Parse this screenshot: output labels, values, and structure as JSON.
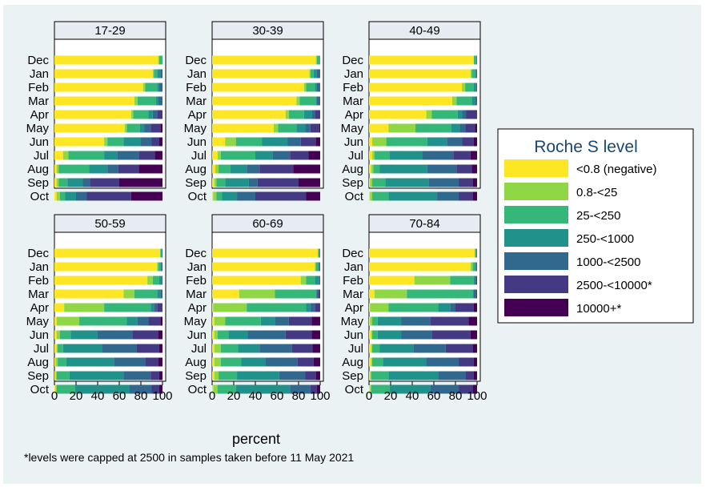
{
  "chart_data": {
    "type": "bar",
    "orientation": "horizontal",
    "stacked": true,
    "xlabel": "percent",
    "xlim": [
      0,
      100
    ],
    "xticks": [
      0,
      20,
      40,
      60,
      80,
      100
    ],
    "months": [
      "Dec",
      "Jan",
      "Feb",
      "Mar",
      "Apr",
      "May",
      "Jun",
      "Jul",
      "Aug",
      "Sep",
      "Oct"
    ],
    "footnote": "*levels were capped at 2500 in samples taken before 11 May 2021",
    "legend": {
      "title": "Roche S level",
      "position": "right",
      "items": [
        {
          "label": "<0.8 (negative)",
          "color": "#fde725"
        },
        {
          "label": "0.8-<25",
          "color": "#8fd744"
        },
        {
          "label": "25-<250",
          "color": "#35b779"
        },
        {
          "label": "250-<1000",
          "color": "#21918c"
        },
        {
          "label": "1000-<2500",
          "color": "#31688e"
        },
        {
          "label": "2500-<10000*",
          "color": "#443983"
        },
        {
          "label": "10000+*",
          "color": "#440154"
        }
      ]
    },
    "panels": [
      {
        "title": "17-29",
        "values": [
          [
            96,
            1,
            3,
            0,
            0,
            0,
            0
          ],
          [
            91,
            1,
            3,
            3,
            2,
            0,
            0
          ],
          [
            82,
            2,
            11,
            2,
            3,
            0,
            0
          ],
          [
            74,
            3,
            17,
            2,
            4,
            0,
            0
          ],
          [
            71,
            2,
            14,
            4,
            4,
            5,
            0
          ],
          [
            65,
            2,
            12,
            4,
            6,
            9,
            2
          ],
          [
            46,
            3,
            15,
            16,
            10,
            7,
            3
          ],
          [
            8,
            5,
            33,
            12,
            20,
            15,
            7
          ],
          [
            2,
            2,
            28,
            17,
            10,
            19,
            22
          ],
          [
            2,
            2,
            8,
            14,
            7,
            27,
            40
          ],
          [
            2,
            3,
            5,
            10,
            10,
            41,
            29
          ]
        ]
      },
      {
        "title": "30-39",
        "values": [
          [
            96,
            1,
            3,
            0,
            0,
            0,
            0
          ],
          [
            90,
            1,
            3,
            3,
            3,
            0,
            0
          ],
          [
            85,
            2,
            8,
            2,
            3,
            0,
            0
          ],
          [
            78,
            3,
            15,
            1,
            3,
            0,
            0
          ],
          [
            68,
            3,
            14,
            7,
            3,
            5,
            0
          ],
          [
            57,
            4,
            17,
            8,
            5,
            8,
            1
          ],
          [
            12,
            10,
            24,
            24,
            12,
            14,
            4
          ],
          [
            5,
            3,
            32,
            16,
            16,
            17,
            11
          ],
          [
            3,
            3,
            11,
            15,
            12,
            31,
            25
          ],
          [
            2,
            2,
            8,
            22,
            8,
            38,
            20
          ],
          [
            1,
            3,
            5,
            14,
            17,
            47,
            13
          ]
        ]
      },
      {
        "title": "40-49",
        "values": [
          [
            97,
            0,
            2,
            1,
            0,
            0,
            0
          ],
          [
            94,
            1,
            3,
            1,
            1,
            0,
            0
          ],
          [
            86,
            3,
            8,
            2,
            1,
            0,
            0
          ],
          [
            77,
            4,
            14,
            3,
            2,
            0,
            0
          ],
          [
            53,
            5,
            24,
            4,
            4,
            10,
            0
          ],
          [
            18,
            25,
            33,
            8,
            5,
            9,
            2
          ],
          [
            3,
            13,
            38,
            18,
            14,
            11,
            3
          ],
          [
            3,
            2,
            14,
            30,
            29,
            16,
            6
          ],
          [
            2,
            2,
            6,
            44,
            27,
            14,
            5
          ],
          [
            1,
            2,
            12,
            40,
            28,
            13,
            4
          ],
          [
            1,
            2,
            15,
            45,
            20,
            13,
            4
          ]
        ]
      },
      {
        "title": "50-59",
        "values": [
          [
            98,
            0,
            1,
            1,
            0,
            0,
            0
          ],
          [
            95,
            1,
            2,
            1,
            1,
            0,
            0
          ],
          [
            86,
            5,
            6,
            2,
            1,
            0,
            0
          ],
          [
            64,
            10,
            21,
            3,
            2,
            0,
            0
          ],
          [
            9,
            37,
            43,
            3,
            3,
            5,
            0
          ],
          [
            2,
            21,
            44,
            10,
            10,
            11,
            2
          ],
          [
            2,
            3,
            10,
            25,
            32,
            24,
            4
          ],
          [
            2,
            1,
            5,
            36,
            32,
            21,
            3
          ],
          [
            1,
            2,
            8,
            44,
            29,
            12,
            4
          ],
          [
            1,
            1,
            12,
            50,
            25,
            8,
            3
          ],
          [
            1,
            1,
            17,
            50,
            21,
            7,
            3
          ]
        ]
      },
      {
        "title": "60-69",
        "values": [
          [
            98,
            0,
            1,
            1,
            0,
            0,
            0
          ],
          [
            95,
            1,
            2,
            1,
            1,
            0,
            0
          ],
          [
            82,
            5,
            8,
            4,
            1,
            0,
            0
          ],
          [
            25,
            33,
            38,
            1,
            1,
            2,
            0
          ],
          [
            1,
            31,
            55,
            4,
            4,
            5,
            0
          ],
          [
            2,
            10,
            33,
            13,
            13,
            21,
            8
          ],
          [
            2,
            3,
            10,
            18,
            35,
            24,
            8
          ],
          [
            2,
            6,
            16,
            20,
            30,
            19,
            7
          ],
          [
            2,
            6,
            19,
            22,
            30,
            15,
            6
          ],
          [
            2,
            4,
            17,
            39,
            24,
            10,
            4
          ],
          [
            1,
            4,
            17,
            50,
            19,
            6,
            3
          ]
        ]
      },
      {
        "title": "70-84",
        "values": [
          [
            98,
            0,
            1,
            1,
            0,
            0,
            0
          ],
          [
            94,
            2,
            2,
            1,
            1,
            0,
            0
          ],
          [
            42,
            33,
            22,
            1,
            1,
            1,
            0
          ],
          [
            5,
            30,
            61,
            1,
            2,
            1,
            0
          ],
          [
            1,
            17,
            46,
            11,
            5,
            17,
            3
          ],
          [
            1,
            2,
            5,
            22,
            27,
            35,
            8
          ],
          [
            2,
            1,
            5,
            22,
            28,
            36,
            6
          ],
          [
            2,
            1,
            7,
            31,
            30,
            25,
            4
          ],
          [
            2,
            1,
            10,
            40,
            30,
            14,
            3
          ],
          [
            1,
            1,
            16,
            46,
            25,
            8,
            3
          ],
          [
            1,
            1,
            17,
            38,
            26,
            13,
            4
          ]
        ]
      }
    ]
  }
}
